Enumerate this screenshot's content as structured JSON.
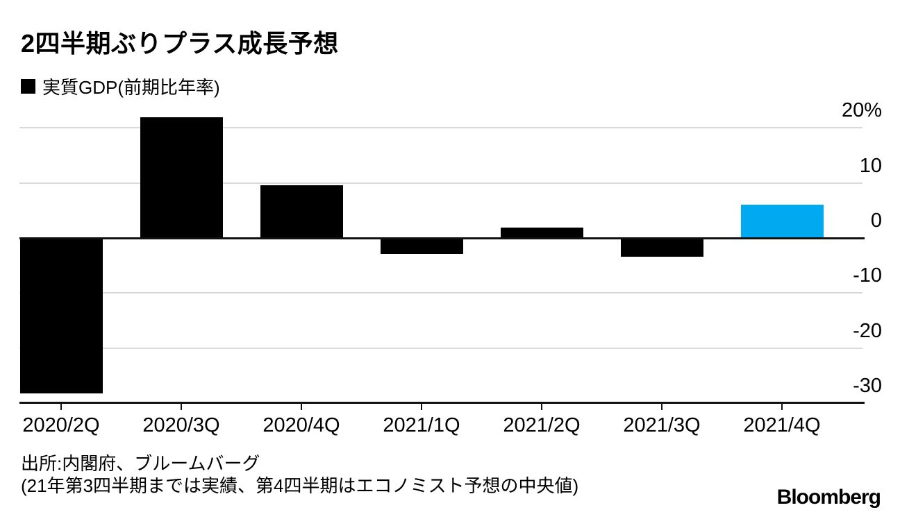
{
  "header": {
    "title": "2四半期ぶりプラス成長予想",
    "legend_label": "実質GDP(前期比年率)"
  },
  "chart_data": {
    "type": "bar",
    "title": "2四半期ぶりプラス成長予想",
    "legend": "実質GDP(前期比年率)",
    "categories": [
      "2020/2Q",
      "2020/3Q",
      "2020/4Q",
      "2021/1Q",
      "2021/2Q",
      "2021/3Q",
      "2021/4Q"
    ],
    "values": [
      -28.3,
      22.0,
      9.6,
      -2.9,
      1.9,
      -3.4,
      6.0
    ],
    "unit": "%",
    "bar_colors": [
      "#000000",
      "#000000",
      "#000000",
      "#000000",
      "#000000",
      "#000000",
      "#00a9f0"
    ],
    "highlight_index": 6,
    "ylim": [
      -30,
      22
    ],
    "yticks": [
      20,
      10,
      0,
      -10,
      -20,
      -30
    ],
    "ytick_labels": [
      "20%",
      "10",
      "0",
      "-10",
      "-20",
      "-30"
    ],
    "grid": true,
    "legend_position": "top-left",
    "ylabel_side": "right"
  },
  "footer": {
    "source": "出所:内閣府、ブルームバーグ",
    "note": "(21年第3四半期までは実績、第4四半期はエコノミスト予想の中央値)"
  },
  "branding": {
    "logo": "Bloomberg"
  },
  "colors": {
    "bar": "#000000",
    "forecast": "#00a9f0",
    "grid": "#d9d9d9",
    "axis": "#111111",
    "text": "#000000",
    "background": "#ffffff"
  }
}
